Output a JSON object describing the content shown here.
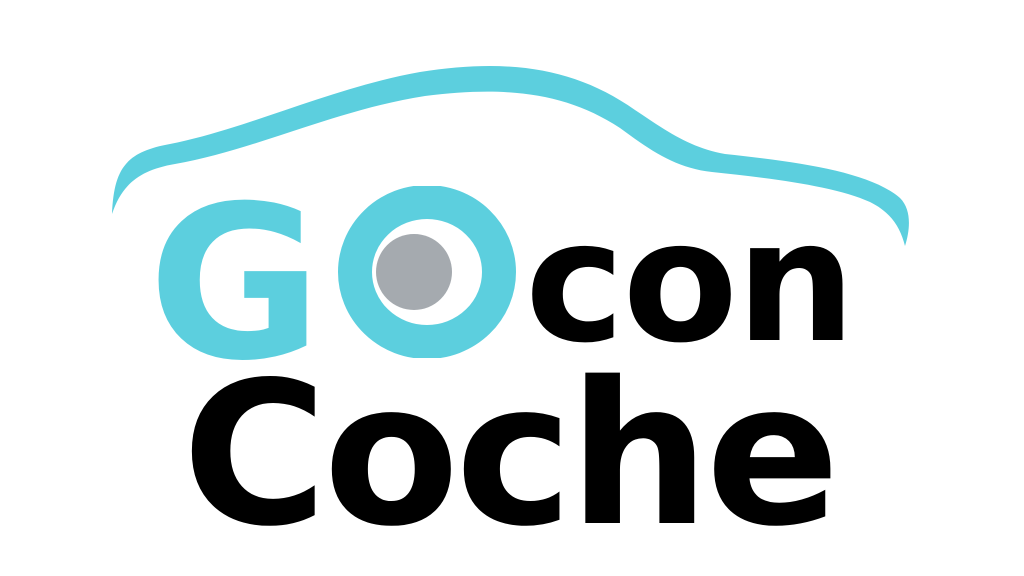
{
  "logo": {
    "go_g": "G",
    "go_o": "O",
    "con": "con",
    "coche": "Coche"
  },
  "colors": {
    "accent": "#5ccfde",
    "text": "#000000",
    "lens": "#a5aaaf",
    "background": "#ffffff"
  },
  "icons": {
    "car": "car-outline-icon",
    "lens": "lens-dot-icon"
  }
}
